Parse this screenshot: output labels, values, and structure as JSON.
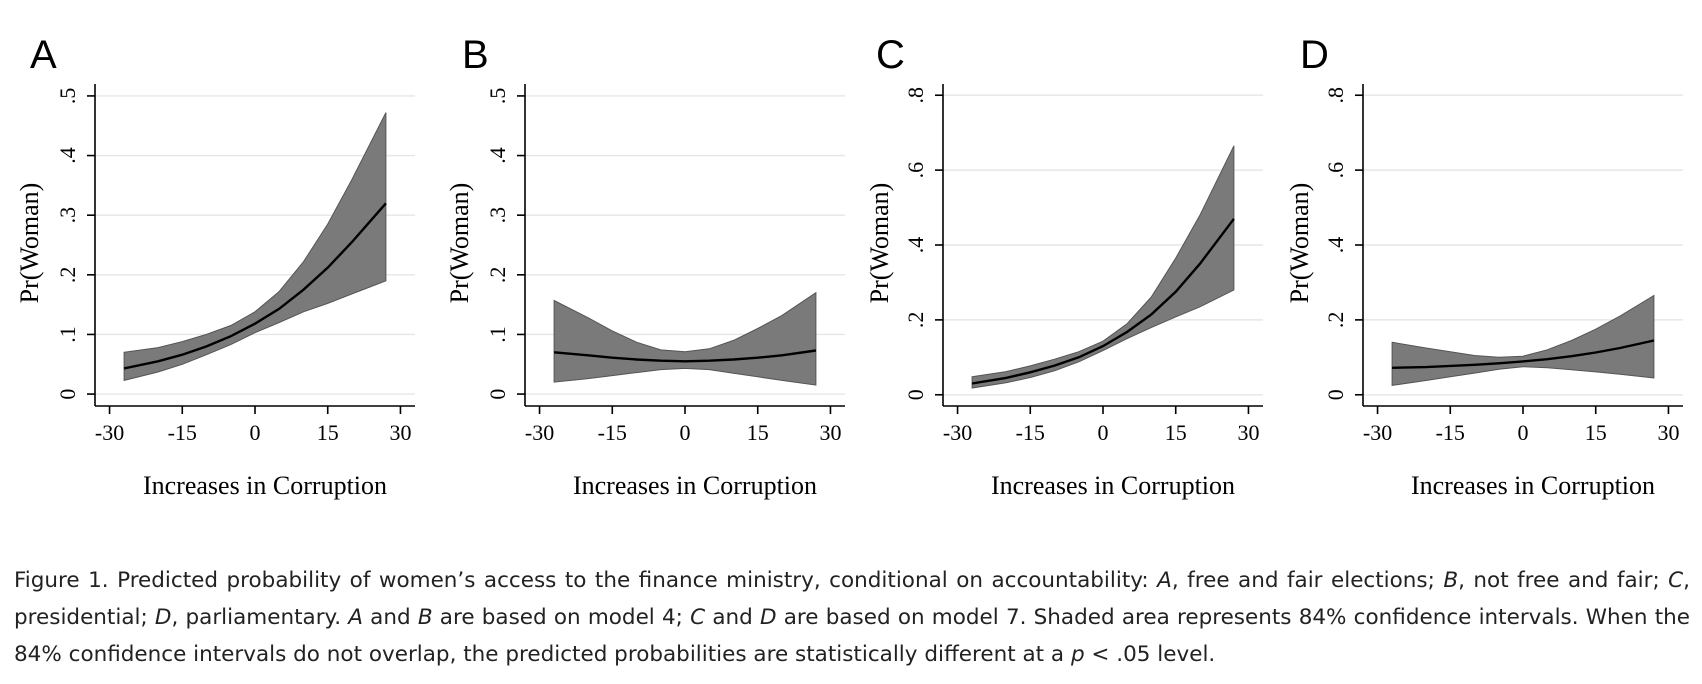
{
  "chart_data": [
    {
      "panel": "A",
      "type": "line",
      "xlabel": "Increases in Corruption",
      "ylabel": "Pr(Woman)",
      "xlim": [
        -33,
        33
      ],
      "ylim": [
        -0.02,
        0.52
      ],
      "xticks": [
        -30,
        -15,
        0,
        15,
        30
      ],
      "xtick_labels": [
        "-30",
        "-15",
        "0",
        "15",
        "30"
      ],
      "yticks": [
        0,
        0.1,
        0.2,
        0.3,
        0.4,
        0.5
      ],
      "ytick_labels": [
        "0",
        ".1",
        ".2",
        ".3",
        ".4",
        ".5"
      ],
      "grid": true,
      "x": [
        -27,
        -20,
        -15,
        -10,
        -5,
        0,
        5,
        10,
        15,
        20,
        27
      ],
      "values": [
        0.043,
        0.055,
        0.066,
        0.08,
        0.097,
        0.118,
        0.143,
        0.175,
        0.212,
        0.255,
        0.32
      ],
      "ci_lower": [
        0.023,
        0.037,
        0.05,
        0.066,
        0.083,
        0.103,
        0.12,
        0.138,
        0.152,
        0.168,
        0.19
      ],
      "ci_upper": [
        0.07,
        0.078,
        0.088,
        0.1,
        0.115,
        0.138,
        0.172,
        0.222,
        0.285,
        0.36,
        0.472
      ]
    },
    {
      "panel": "B",
      "type": "line",
      "xlabel": "Increases in Corruption",
      "ylabel": "Pr(Woman)",
      "xlim": [
        -33,
        33
      ],
      "ylim": [
        -0.02,
        0.52
      ],
      "xticks": [
        -30,
        -15,
        0,
        15,
        30
      ],
      "xtick_labels": [
        "-30",
        "-15",
        "0",
        "15",
        "30"
      ],
      "yticks": [
        0,
        0.1,
        0.2,
        0.3,
        0.4,
        0.5
      ],
      "ytick_labels": [
        "0",
        ".1",
        ".2",
        ".3",
        ".4",
        ".5"
      ],
      "grid": true,
      "x": [
        -27,
        -20,
        -15,
        -10,
        -5,
        0,
        5,
        10,
        15,
        20,
        27
      ],
      "values": [
        0.07,
        0.065,
        0.061,
        0.058,
        0.056,
        0.055,
        0.056,
        0.058,
        0.061,
        0.065,
        0.073
      ],
      "ci_lower": [
        0.02,
        0.026,
        0.031,
        0.036,
        0.041,
        0.043,
        0.041,
        0.035,
        0.029,
        0.023,
        0.015
      ],
      "ci_upper": [
        0.157,
        0.128,
        0.106,
        0.087,
        0.074,
        0.071,
        0.076,
        0.09,
        0.11,
        0.132,
        0.17
      ]
    },
    {
      "panel": "C",
      "type": "line",
      "xlabel": "Increases in Corruption",
      "ylabel": "Pr(Woman)",
      "xlim": [
        -33,
        33
      ],
      "ylim": [
        -0.03,
        0.83
      ],
      "xticks": [
        -30,
        -15,
        0,
        15,
        30
      ],
      "xtick_labels": [
        "-30",
        "-15",
        "0",
        "15",
        "30"
      ],
      "yticks": [
        0,
        0.2,
        0.4,
        0.6,
        0.8
      ],
      "ytick_labels": [
        "0",
        ".2",
        ".4",
        ".6",
        ".8"
      ],
      "grid": true,
      "x": [
        -27,
        -20,
        -15,
        -10,
        -5,
        0,
        5,
        10,
        15,
        20,
        27
      ],
      "values": [
        0.03,
        0.045,
        0.06,
        0.078,
        0.1,
        0.13,
        0.168,
        0.215,
        0.275,
        0.35,
        0.47
      ],
      "ci_lower": [
        0.018,
        0.032,
        0.046,
        0.064,
        0.088,
        0.118,
        0.15,
        0.18,
        0.208,
        0.235,
        0.28
      ],
      "ci_upper": [
        0.048,
        0.062,
        0.077,
        0.095,
        0.115,
        0.143,
        0.19,
        0.262,
        0.365,
        0.48,
        0.665
      ]
    },
    {
      "panel": "D",
      "type": "line",
      "xlabel": "Increases in Corruption",
      "ylabel": "Pr(Woman)",
      "xlim": [
        -33,
        33
      ],
      "ylim": [
        -0.03,
        0.83
      ],
      "xticks": [
        -30,
        -15,
        0,
        15,
        30
      ],
      "xtick_labels": [
        "-30",
        "-15",
        "0",
        "15",
        "30"
      ],
      "yticks": [
        0,
        0.2,
        0.4,
        0.6,
        0.8
      ],
      "ytick_labels": [
        "0",
        ".2",
        ".4",
        ".6",
        ".8"
      ],
      "grid": true,
      "x": [
        -27,
        -20,
        -15,
        -10,
        -5,
        0,
        5,
        10,
        15,
        20,
        27
      ],
      "values": [
        0.072,
        0.074,
        0.077,
        0.08,
        0.084,
        0.089,
        0.095,
        0.103,
        0.113,
        0.125,
        0.145
      ],
      "ci_lower": [
        0.025,
        0.038,
        0.048,
        0.058,
        0.068,
        0.075,
        0.072,
        0.067,
        0.061,
        0.055,
        0.045
      ],
      "ci_upper": [
        0.14,
        0.125,
        0.115,
        0.105,
        0.1,
        0.103,
        0.12,
        0.145,
        0.175,
        0.21,
        0.265
      ]
    }
  ],
  "caption": {
    "p1": "Figure 1. Predicted probability of women’s access to the finance ministry, conditional on accountability: ",
    "A": "A",
    "p2": ", free and fair elections; ",
    "B": "B",
    "p3": ", not free and fair; ",
    "C": "C",
    "p4": ", presidential; ",
    "D": "D",
    "p5": ", parliamentary. ",
    "A2": "A",
    "p6": " and ",
    "B2": "B",
    "p7": " are based on model 4; ",
    "C2": "C",
    "p8": " and ",
    "D2": "D",
    "p9": " are based on model 7. Shaded area represents 84% confidence intervals. When the 84% confidence intervals do not overlap, the predicted probabilities are statistically different at a ",
    "p": "p",
    "p10": " < .05 level."
  }
}
